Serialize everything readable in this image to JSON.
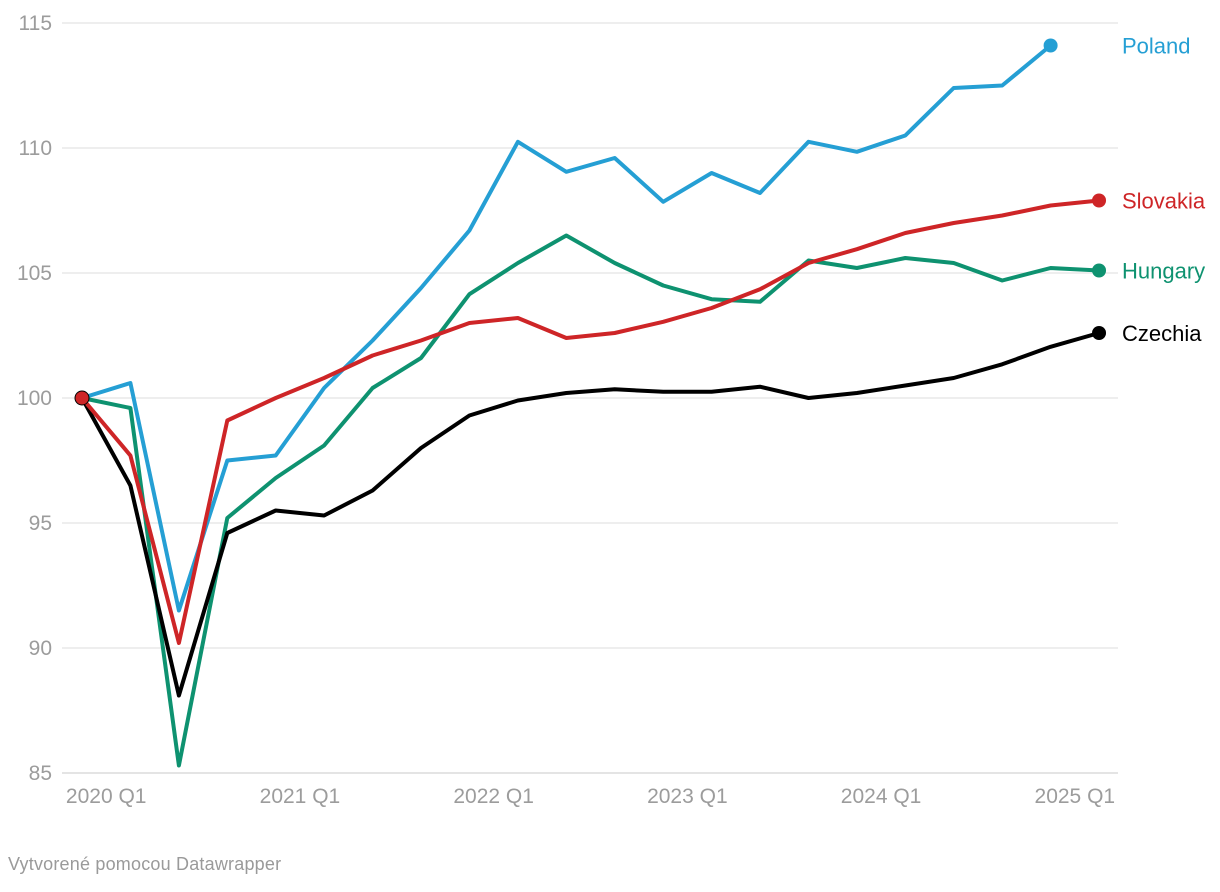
{
  "footer": {
    "credit": "Vytvorené pomocou Datawrapper"
  },
  "chart_data": {
    "type": "line",
    "title": "",
    "xlabel": "",
    "ylabel": "",
    "ylim": [
      85,
      115
    ],
    "y_ticks": [
      85,
      90,
      95,
      100,
      105,
      110,
      115
    ],
    "grid": true,
    "legend_position": "right-of-line-ends",
    "quarters": [
      "2020 Q1",
      "2020 Q2",
      "2020 Q3",
      "2020 Q4",
      "2021 Q1",
      "2021 Q2",
      "2021 Q3",
      "2021 Q4",
      "2022 Q1",
      "2022 Q2",
      "2022 Q3",
      "2022 Q4",
      "2023 Q1",
      "2023 Q2",
      "2023 Q3",
      "2023 Q4",
      "2024 Q1",
      "2024 Q2",
      "2024 Q3",
      "2024 Q4",
      "2025 Q1",
      "2025 Q2"
    ],
    "x_tick_labels": [
      "2020 Q1",
      "2021 Q1",
      "2022 Q1",
      "2023 Q1",
      "2024 Q1",
      "2025 Q1"
    ],
    "x_tick_indices": [
      0,
      4,
      8,
      12,
      16,
      20
    ],
    "series": [
      {
        "name": "Poland",
        "color": "#259fd4",
        "values": [
          100,
          100.6,
          91.5,
          97.5,
          97.7,
          100.4,
          102.3,
          104.4,
          106.7,
          110.25,
          109.05,
          109.6,
          107.85,
          109.0,
          108.2,
          110.25,
          109.85,
          110.5,
          112.4,
          112.5,
          114.1
        ]
      },
      {
        "name": "Hungary",
        "color": "#0e9270",
        "values": [
          100,
          99.6,
          85.3,
          95.2,
          96.8,
          98.1,
          100.4,
          101.6,
          104.15,
          105.4,
          106.5,
          105.4,
          104.5,
          103.95,
          103.85,
          105.5,
          105.2,
          105.6,
          105.4,
          104.7,
          105.2,
          105.1
        ]
      },
      {
        "name": "Czechia",
        "color": "#000000",
        "values": [
          100,
          96.5,
          88.1,
          94.6,
          95.5,
          95.3,
          96.3,
          98.0,
          99.3,
          99.9,
          100.2,
          100.35,
          100.25,
          100.25,
          100.45,
          100.0,
          100.2,
          100.5,
          100.8,
          101.35,
          102.05,
          102.6
        ]
      },
      {
        "name": "Slovakia",
        "color": "#ce2527",
        "values": [
          100,
          97.7,
          90.2,
          99.1,
          100.0,
          100.8,
          101.7,
          102.3,
          103.0,
          103.2,
          102.4,
          102.6,
          103.05,
          103.6,
          104.35,
          105.4,
          105.95,
          106.6,
          107.0,
          107.3,
          107.7,
          107.9
        ]
      }
    ],
    "start_marker": {
      "x_index": 0,
      "value": 100,
      "colors": [
        "#000000",
        "#ce2527"
      ]
    },
    "colors": {
      "grid": "#e9e9e9",
      "baseline": "#dcdcdc",
      "tick_text": "#9c9c9c"
    }
  }
}
